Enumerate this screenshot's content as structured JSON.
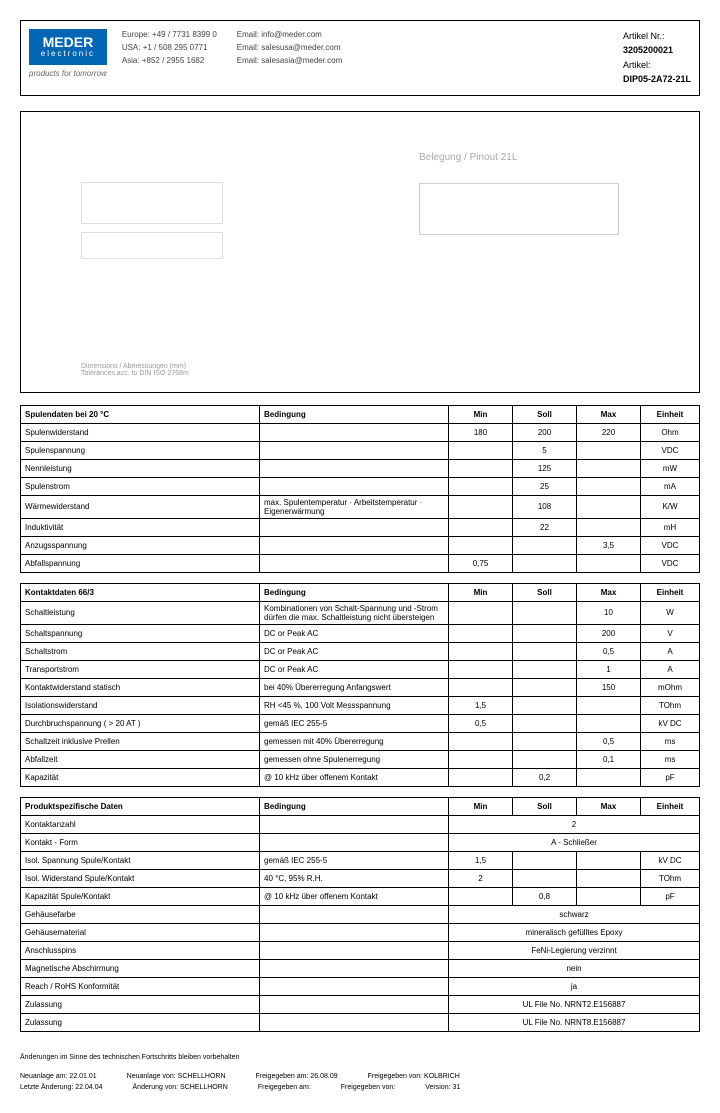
{
  "logo": {
    "main": "MEDER",
    "sub": "electronic",
    "tagline": "products for tomorrow"
  },
  "contact": {
    "col1": [
      "Europe: +49 / 7731 8399 0",
      "USA: +1 / 508 295 0771",
      "Asia: +852 / 2955 1682"
    ],
    "col2": [
      "Email: info@meder.com",
      "Email: salesusa@meder.com",
      "Email: salesasia@meder.com"
    ]
  },
  "article": {
    "nr_label": "Artikel Nr.:",
    "nr": "3205200021",
    "name_label": "Artikel:",
    "name": "DIP05-2A72-21L"
  },
  "diagram": {
    "title": "Belegung / Pinout   21L",
    "note": "Dimensions / Abmessungen (mm)\nTolerances acc. to DIN ISO 2768m"
  },
  "t1": {
    "header": [
      "Spulendaten bei 20 °C",
      "Bedingung",
      "Min",
      "Soll",
      "Max",
      "Einheit"
    ],
    "rows": [
      [
        "Spulenwiderstand",
        "",
        "180",
        "200",
        "220",
        "Ohm"
      ],
      [
        "Spulenspannung",
        "",
        "",
        "5",
        "",
        "VDC"
      ],
      [
        "Nennleistung",
        "",
        "",
        "125",
        "",
        "mW"
      ],
      [
        "Spulenstrom",
        "",
        "",
        "25",
        "",
        "mA"
      ],
      [
        "Wärmewiderstand",
        "max. Spulentemperatur · Arbeitstemperatur · Eigenerwärmung",
        "",
        "108",
        "",
        "K/W"
      ],
      [
        "Induktivität",
        "",
        "",
        "22",
        "",
        "mH"
      ],
      [
        "Anzugsspannung",
        "",
        "",
        "",
        "3,5",
        "VDC"
      ],
      [
        "Abfallspannung",
        "",
        "0,75",
        "",
        "",
        "VDC"
      ]
    ]
  },
  "t2": {
    "header": [
      "Kontaktdaten  66/3",
      "Bedingung",
      "Min",
      "Soll",
      "Max",
      "Einheit"
    ],
    "rows": [
      [
        "Schaltleistung",
        "Kombinationen von Schalt-Spannung und -Strom dürfen die max. Schaltleistung nicht übersteigen",
        "",
        "",
        "10",
        "W"
      ],
      [
        "Schaltspannung",
        "DC or Peak AC",
        "",
        "",
        "200",
        "V"
      ],
      [
        "Schaltstrom",
        "DC or Peak AC",
        "",
        "",
        "0,5",
        "A"
      ],
      [
        "Transportstrom",
        "DC or Peak AC",
        "",
        "",
        "1",
        "A"
      ],
      [
        "Kontaktwiderstand statisch",
        "bei 40% Übererregung Anfangswert",
        "",
        "",
        "150",
        "mOhm"
      ],
      [
        "Isolationswiderstand",
        "RH <45 %, 100 Volt Messspannung",
        "1,5",
        "",
        "",
        "TOhm"
      ],
      [
        "Durchbruchspannung ( > 20 AT )",
        "gemäß IEC 255-5",
        "0,5",
        "",
        "",
        "kV DC"
      ],
      [
        "Schaltzeit inklusive Prellen",
        "gemessen mit 40% Übererregung",
        "",
        "",
        "0,5",
        "ms"
      ],
      [
        "Abfallzeit",
        "gemessen ohne Spulenerregung",
        "",
        "",
        "0,1",
        "ms"
      ],
      [
        "Kapazität",
        "@ 10 kHz über offenem Kontakt",
        "",
        "0,2",
        "",
        "pF"
      ]
    ]
  },
  "t3": {
    "header": [
      "Produktspezifische Daten",
      "Bedingung",
      "Min",
      "Soll",
      "Max",
      "Einheit"
    ],
    "rows": [
      [
        "Kontaktanzahl",
        "",
        {
          "span": "2"
        },
        "",
        ""
      ],
      [
        "Kontakt - Form",
        "",
        {
          "span": "A - Schließer"
        },
        "",
        ""
      ],
      [
        "Isol. Spannung Spule/Kontakt",
        "gemäß IEC 255-5",
        "1,5",
        "",
        "",
        "kV DC"
      ],
      [
        "Isol. Widerstand Spule/Kontakt",
        "40 °C, 95% R.H.",
        "2",
        "",
        "",
        "TOhm"
      ],
      [
        "Kapazität Spule/Kontakt",
        "@ 10 kHz über offenem Kontakt",
        "",
        "0,8",
        "",
        "pF"
      ],
      [
        "Gehäusefarbe",
        "",
        {
          "span": "schwarz"
        },
        "",
        ""
      ],
      [
        "Gehäusematerial",
        "",
        {
          "span": "mineralisch gefülltes Epoxy"
        },
        "",
        ""
      ],
      [
        "Anschlusspins",
        "",
        {
          "span": "FeNi-Legierung verzinnt"
        },
        "",
        ""
      ],
      [
        "Magnetische Abschirmung",
        "",
        {
          "span": "nein"
        },
        "",
        ""
      ],
      [
        "Reach / RoHS Konformität",
        "",
        {
          "span": "ja"
        },
        "",
        ""
      ],
      [
        "Zulassung",
        "",
        {
          "span": "UL File No. NRNT2.E156887"
        },
        "",
        ""
      ],
      [
        "Zulassung",
        "",
        {
          "span": "UL File No. NRNT8.E156887"
        },
        "",
        ""
      ]
    ]
  },
  "footer": {
    "note": "Änderungen im Sinne des technischen Fortschritts bleiben vorbehalten",
    "r1": [
      "Neuanlage am:   22.01.01",
      "Neuanlage von:   SCHELLHORN",
      "Freigegeben am:   26.08.09",
      "Freigegeben von:   KOLBRICH"
    ],
    "r2": [
      "Letzte Änderung:   22.04.04",
      "Änderung von:   SCHELLHORN",
      "Freigegeben am:",
      "Freigegeben von:",
      "Version:   31"
    ]
  }
}
